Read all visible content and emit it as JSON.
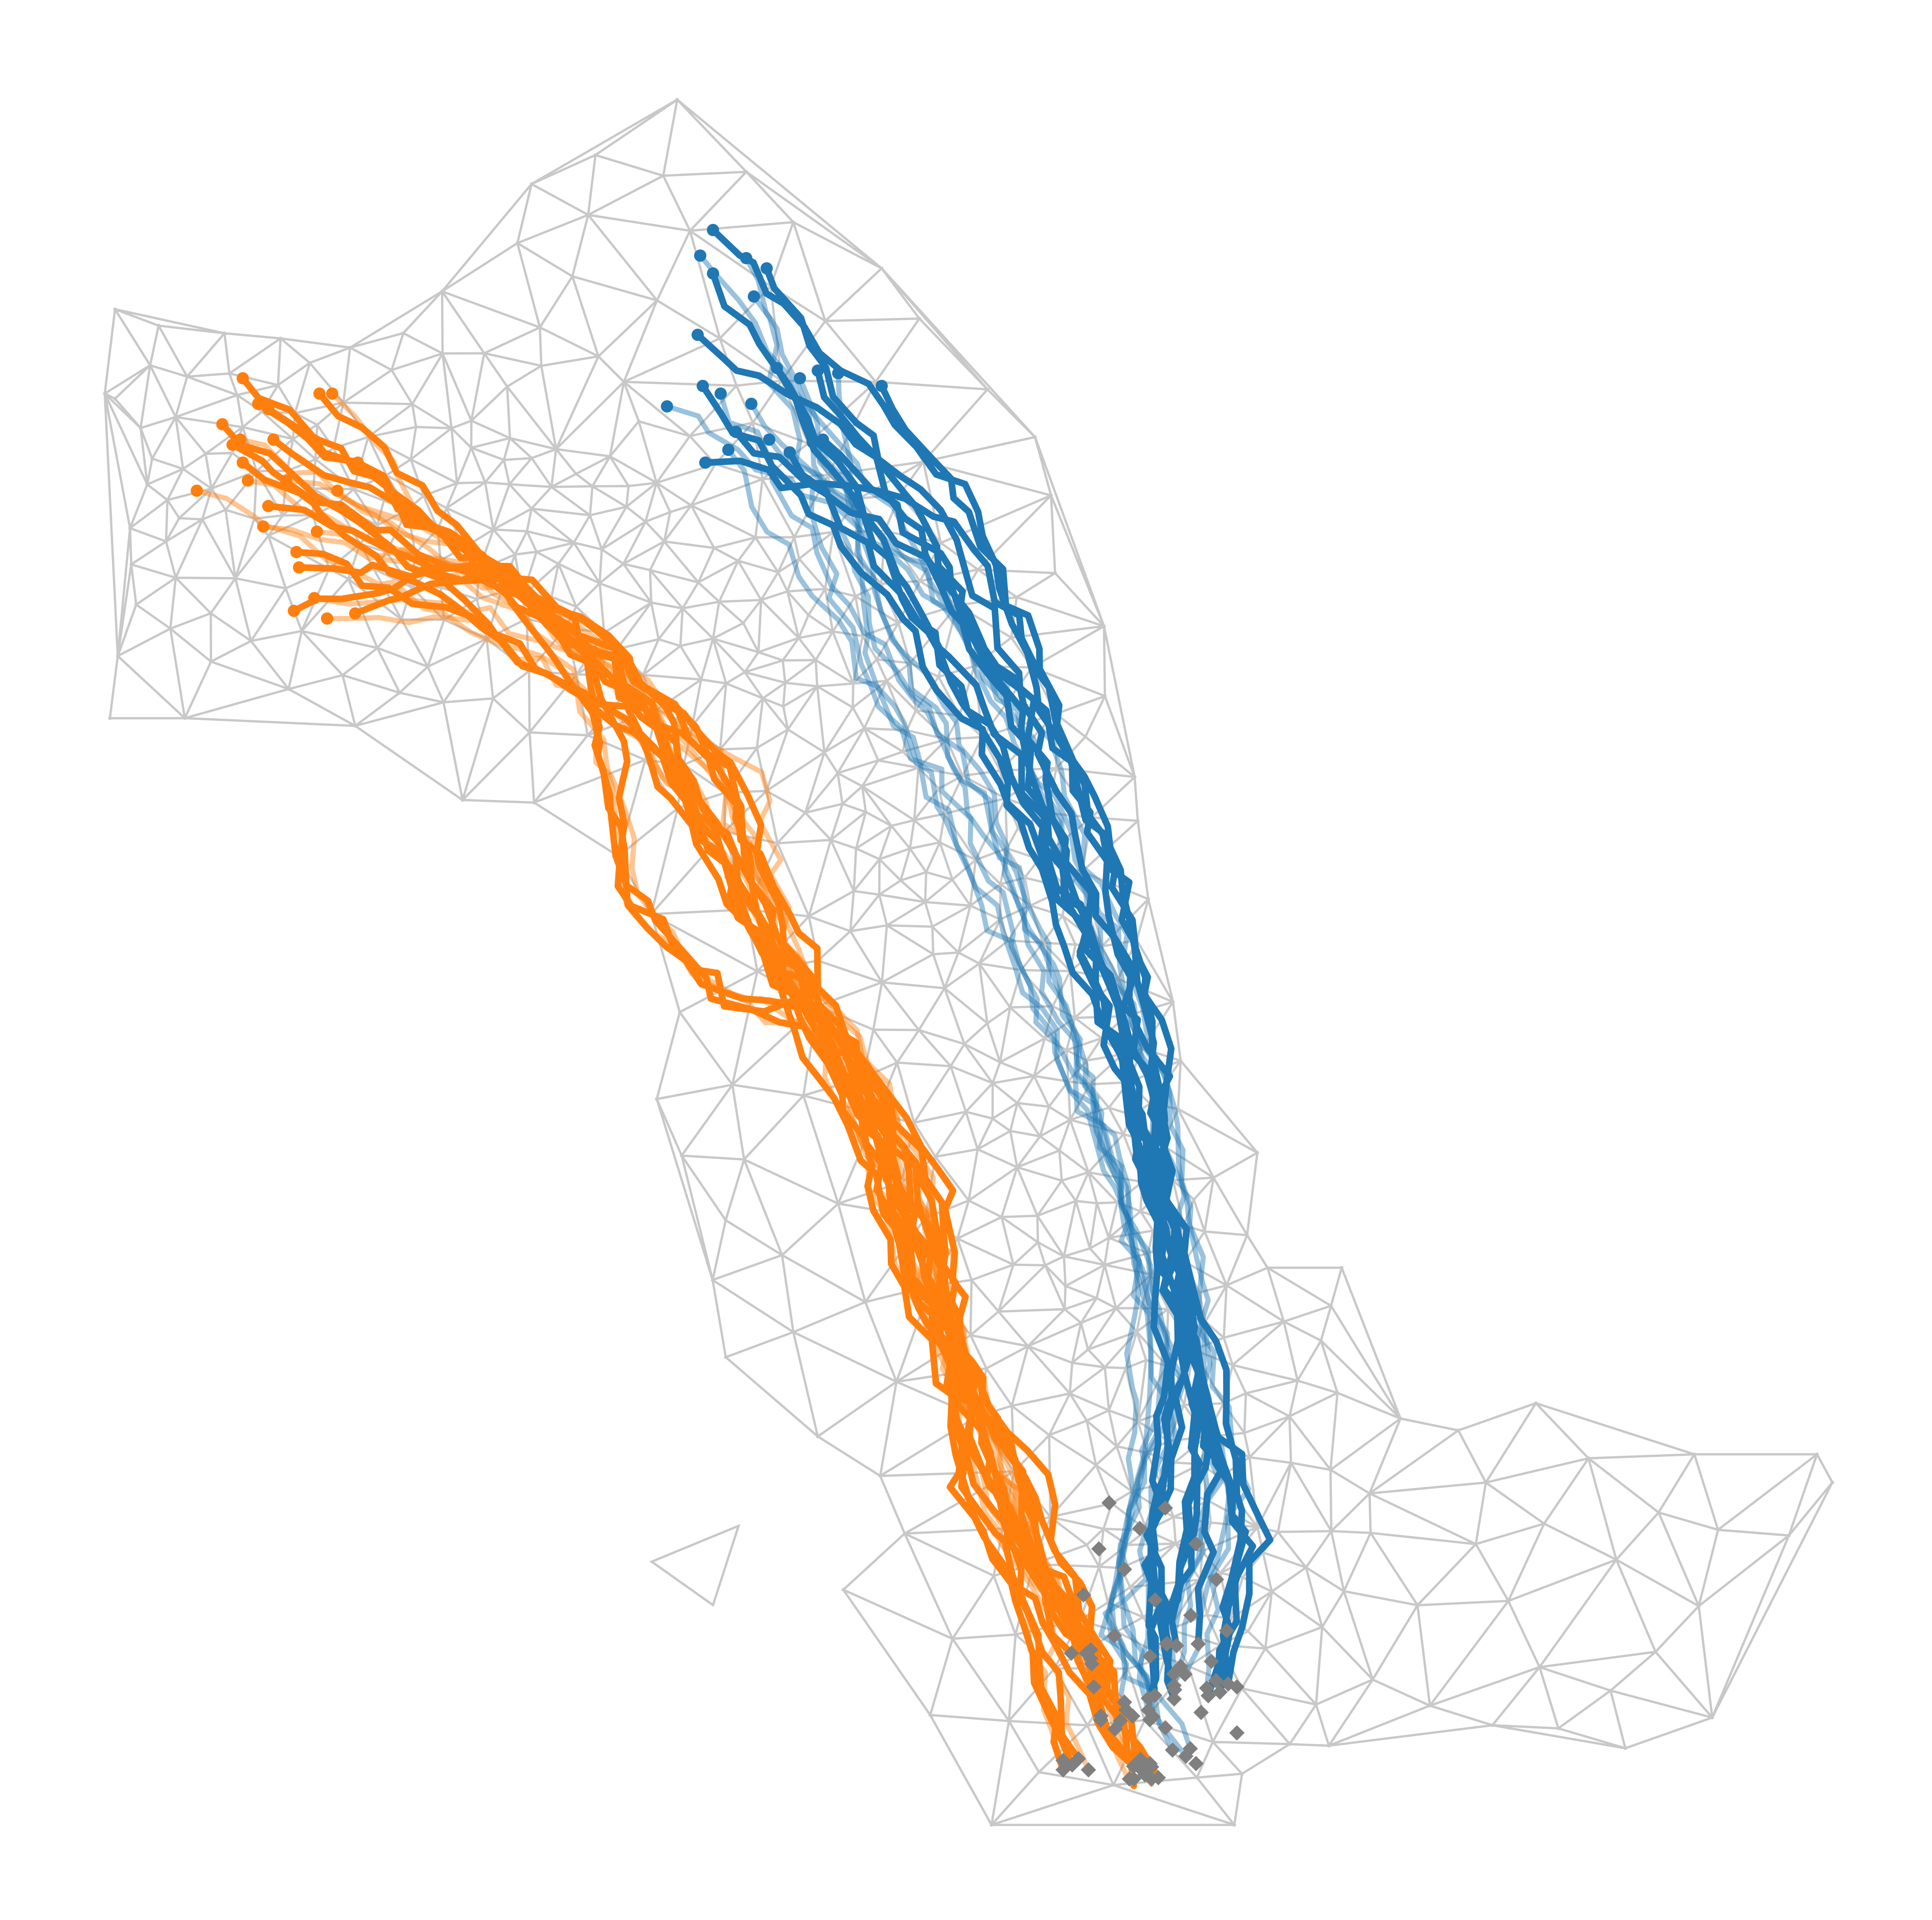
{
  "colors": {
    "background": "#ffffff",
    "mesh_edge": "#c8c8c8",
    "mesh_node": "#c8c8c8",
    "group_a": "#1f77b4",
    "group_b": "#ff7f0e",
    "endpoint": "#7f7f7f"
  },
  "diagram": {
    "type": "graph",
    "description_in_image": "",
    "node_markers": {
      "group_a_start": "circle",
      "group_b_start": "circle",
      "end": "diamond"
    },
    "legend": "none",
    "axes": "none"
  }
}
